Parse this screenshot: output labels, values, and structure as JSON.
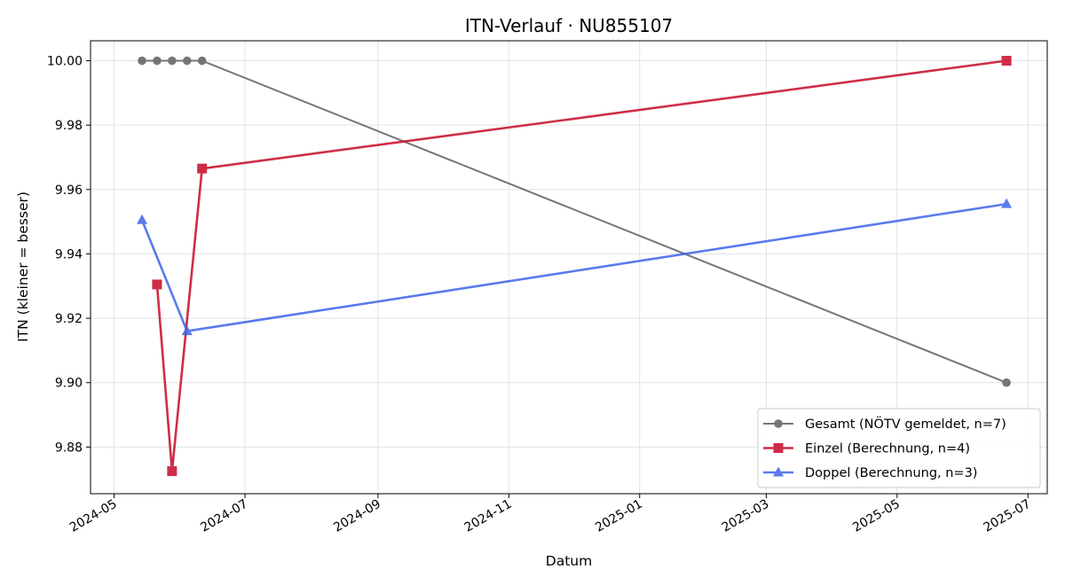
{
  "chart_data": {
    "type": "line",
    "title": "ITN-Verlauf · NU855107",
    "xlabel": "Datum",
    "ylabel": "ITN  (kleiner = besser)",
    "xlim": [
      "2024-04-20",
      "2025-07-10"
    ],
    "ylim": [
      9.8655,
      10.0062
    ],
    "x_ticks": [
      "2024-05",
      "2024-07",
      "2024-09",
      "2024-11",
      "2025-01",
      "2025-03",
      "2025-05",
      "2025-07"
    ],
    "y_ticks": [
      "9.88",
      "9.90",
      "9.92",
      "9.94",
      "9.96",
      "9.98",
      "10.00"
    ],
    "grid": true,
    "legend_position": "lower right",
    "series": [
      {
        "name": "Gesamt (NÖTV gemeldet, n=7)",
        "color": "#555555",
        "marker": "circle",
        "points": [
          {
            "x": "2024-05-14",
            "y": 10.0
          },
          {
            "x": "2024-05-21",
            "y": 10.0
          },
          {
            "x": "2024-05-28",
            "y": 10.0
          },
          {
            "x": "2024-06-04",
            "y": 10.0
          },
          {
            "x": "2024-06-11",
            "y": 10.0
          },
          {
            "x": "2025-06-21",
            "y": 9.9
          }
        ]
      },
      {
        "name": "Einzel (Berechnung, n=4)",
        "color": "#c8102e",
        "marker": "square",
        "points": [
          {
            "x": "2024-05-21",
            "y": 9.9305
          },
          {
            "x": "2024-05-28",
            "y": 9.8725
          },
          {
            "x": "2024-06-11",
            "y": 9.9665
          },
          {
            "x": "2025-06-21",
            "y": 10.0
          }
        ]
      },
      {
        "name": "Doppel (Berechnung, n=3)",
        "color": "#3e63eb",
        "marker": "triangle",
        "points": [
          {
            "x": "2024-05-14",
            "y": 9.9505
          },
          {
            "x": "2024-06-04",
            "y": 9.916
          },
          {
            "x": "2025-06-21",
            "y": 9.9555
          }
        ]
      }
    ]
  }
}
